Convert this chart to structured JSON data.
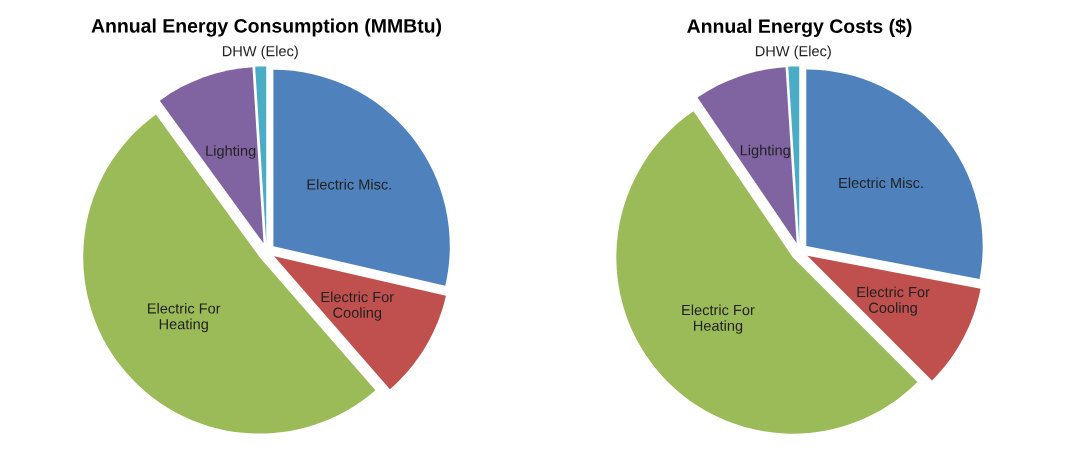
{
  "chart_data": [
    {
      "type": "pie",
      "title": "Annual Energy Consumption (MMBtu)",
      "categories": [
        "Electric Misc.",
        "Electric For Cooling",
        "Electric For Heating",
        "Lighting",
        "DHW (Elec)"
      ],
      "values": [
        28.6,
        10,
        51.4,
        9,
        1
      ],
      "colors": [
        "#4f81bd",
        "#c0504d",
        "#9bbb59",
        "#8064a2",
        "#4bacc6"
      ]
    },
    {
      "type": "pie",
      "title": "Annual Energy Costs ($)",
      "categories": [
        "Electric Misc.",
        "Electric For Cooling",
        "Electric For Heating",
        "Lighting",
        "DHW (Elec)"
      ],
      "values": [
        28,
        9.5,
        53,
        8.5,
        1
      ],
      "colors": [
        "#4f81bd",
        "#c0504d",
        "#9bbb59",
        "#8064a2",
        "#4bacc6"
      ]
    }
  ]
}
